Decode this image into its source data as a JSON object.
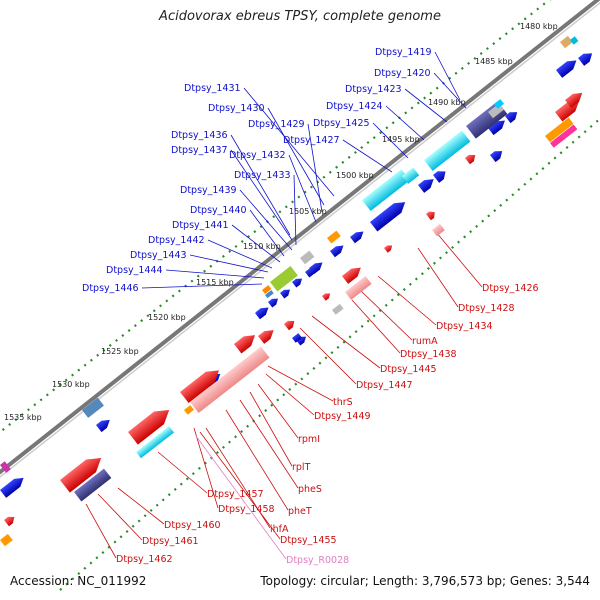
{
  "title": "Acidovorax ebreus TPSY, complete genome",
  "accession": "Accession: NC_011992",
  "summary": "Topology: circular; Length: 3,796,573 bp; Genes: 3,544",
  "colors": {
    "backbone": "#777777",
    "tick_dots": "#2a8a2a",
    "forward_label": "#1010cc",
    "reverse_label": "#cc1010",
    "rna_label": "#e080c0"
  },
  "kbp_labels": [
    "1480 kbp",
    "1485 kbp",
    "1490 kbp",
    "1495 kbp",
    "1500 kbp",
    "1505 kbp",
    "1510 kbp",
    "1515 kbp",
    "1520 kbp",
    "1525 kbp",
    "1530 kbp",
    "1535 kbp"
  ],
  "forward_genes": [
    "Dtpsy_1419",
    "Dtpsy_1420",
    "Dtpsy_1423",
    "Dtpsy_1424",
    "Dtpsy_1425",
    "Dtpsy_1427",
    "Dtpsy_1431",
    "Dtpsy_1430",
    "Dtpsy_1429",
    "Dtpsy_1436",
    "Dtpsy_1437",
    "Dtpsy_1432",
    "Dtpsy_1433",
    "Dtpsy_1439",
    "Dtpsy_1440",
    "Dtpsy_1441",
    "Dtpsy_1442",
    "Dtpsy_1443",
    "Dtpsy_1444",
    "Dtpsy_1446"
  ],
  "reverse_genes": [
    "Dtpsy_1426",
    "Dtpsy_1428",
    "Dtpsy_1434",
    "rumA",
    "Dtpsy_1438",
    "Dtpsy_1445",
    "Dtpsy_1447",
    "thrS",
    "Dtpsy_1449",
    "rpmI",
    "rplT",
    "pheS",
    "Dtpsy_1457",
    "pheT",
    "Dtpsy_1458",
    "ihfA",
    "Dtpsy_1460",
    "Dtpsy_1455",
    "Dtpsy_1461",
    "Dtpsy_R0028",
    "Dtpsy_1462"
  ]
}
